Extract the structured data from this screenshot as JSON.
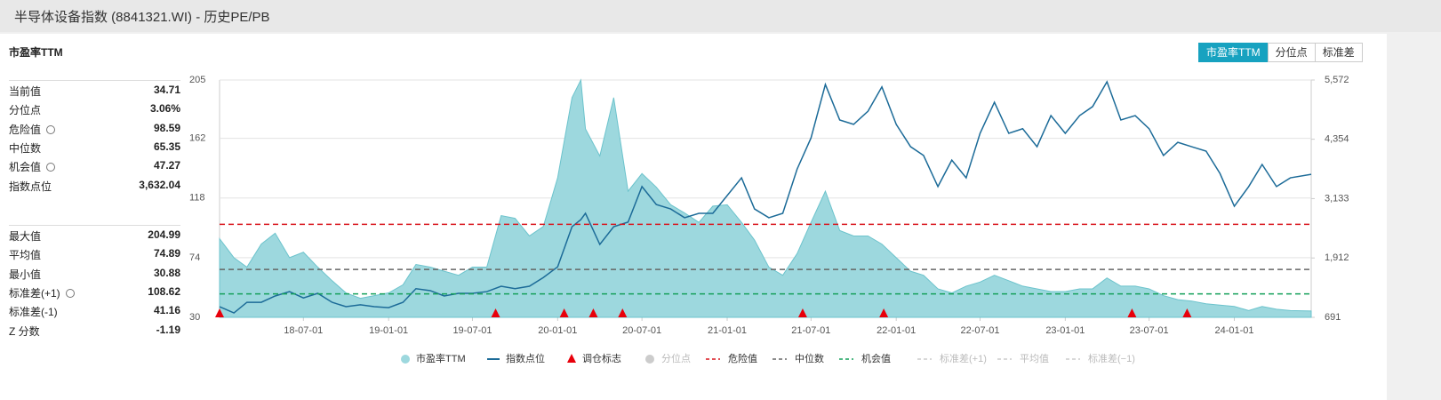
{
  "header": {
    "title": "半导体设备指数 (8841321.WI) - 历史PE/PB"
  },
  "panel": {
    "title": "市盈率TTM",
    "stats_top": [
      {
        "label": "当前值",
        "value": "34.71"
      },
      {
        "label": "分位点",
        "value": "3.06%"
      },
      {
        "label": "危险值",
        "value": "98.59"
      },
      {
        "label": "中位数",
        "value": "65.35"
      },
      {
        "label": "机会值",
        "value": "47.27"
      },
      {
        "label": "指数点位",
        "value": "3,632.04"
      }
    ],
    "stats_bottom": [
      {
        "label": "最大值",
        "value": "204.99"
      },
      {
        "label": "平均值",
        "value": "74.89"
      },
      {
        "label": "最小值",
        "value": "30.88"
      },
      {
        "label": "标准差(+1)",
        "value": "108.62"
      },
      {
        "label": "标准差(-1)",
        "value": "41.16"
      },
      {
        "label": "Z 分数",
        "value": "-1.19"
      }
    ]
  },
  "buttons": [
    "市盈率TTM",
    "分位点",
    "标准差"
  ],
  "chart_data": {
    "type": "combo",
    "x": [
      "18-01-01",
      "18-02-01",
      "18-03-01",
      "18-04-01",
      "18-05-01",
      "18-06-01",
      "18-07-01",
      "18-08-01",
      "18-09-01",
      "18-10-01",
      "18-11-01",
      "18-12-01",
      "19-01-01",
      "19-02-01",
      "19-03-01",
      "19-04-01",
      "19-05-01",
      "19-06-01",
      "19-07-01",
      "19-08-01",
      "19-09-01",
      "19-10-01",
      "19-11-01",
      "19-12-01",
      "20-01-01",
      "20-02-01",
      "20-02-20",
      "20-03-01",
      "20-04-01",
      "20-05-01",
      "20-06-01",
      "20-07-01",
      "20-08-01",
      "20-09-01",
      "20-10-01",
      "20-11-01",
      "20-12-01",
      "21-01-01",
      "21-02-01",
      "21-03-01",
      "21-04-01",
      "21-05-01",
      "21-06-01",
      "21-07-01",
      "21-08-01",
      "21-09-01",
      "21-10-01",
      "21-11-01",
      "21-12-01",
      "22-01-01",
      "22-02-01",
      "22-03-01",
      "22-04-01",
      "22-05-01",
      "22-06-01",
      "22-07-01",
      "22-08-01",
      "22-09-01",
      "22-10-01",
      "22-11-01",
      "22-12-01",
      "23-01-01",
      "23-02-01",
      "23-03-01",
      "23-04-01",
      "23-05-01",
      "23-06-01",
      "23-07-01",
      "23-08-01",
      "23-09-01",
      "23-10-01",
      "23-11-01",
      "23-12-01",
      "24-01-01",
      "24-02-01",
      "24-03-01",
      "24-04-01",
      "24-05-01",
      "24-06-15"
    ],
    "xlim": [
      "18-01-01",
      "24-06-15"
    ],
    "xticks": [
      "18-07-01",
      "19-01-01",
      "19-07-01",
      "20-01-01",
      "20-07-01",
      "21-01-01",
      "21-07-01",
      "22-01-01",
      "22-07-01",
      "23-01-01",
      "23-07-01",
      "24-01-01"
    ],
    "ylim": [
      30,
      205
    ],
    "yticks": [
      30,
      74,
      118,
      162,
      205
    ],
    "y2lim": [
      691,
      5572
    ],
    "y2ticks": [
      691,
      {
        "value": 1912,
        "label": "1,912"
      },
      {
        "value": 3133,
        "label": "3,133"
      },
      {
        "value": 4354,
        "label": "4,354"
      },
      {
        "value": 5572,
        "label": "5,572"
      }
    ],
    "grid": true,
    "series": [
      {
        "name": "市盈率TTM",
        "type": "area",
        "color": "#9dd8de",
        "values": [
          88,
          74,
          67,
          84,
          92,
          74,
          78,
          67,
          57,
          48,
          44,
          46,
          48,
          54,
          69,
          67,
          64,
          61,
          67,
          67,
          105,
          103,
          90,
          97,
          133,
          192,
          204.99,
          169,
          149,
          192,
          123,
          136,
          126,
          113,
          107,
          100,
          112,
          113,
          100,
          87,
          67,
          61,
          77,
          100,
          123,
          94,
          90,
          90,
          84,
          74,
          64,
          61,
          51,
          48,
          53,
          56,
          61,
          57,
          53,
          51,
          49,
          49,
          51,
          51,
          59,
          53,
          53,
          51,
          46,
          43,
          42,
          40,
          39,
          38,
          35,
          38,
          36,
          35,
          34.71
        ]
      },
      {
        "name": "指数点位",
        "type": "line",
        "axis": "y2",
        "color": "#1c6b98",
        "values": [
          910,
          782,
          1000,
          1000,
          1130,
          1220,
          1090,
          1185,
          1000,
          910,
          950,
          910,
          890,
          1000,
          1280,
          1240,
          1130,
          1185,
          1185,
          1220,
          1330,
          1280,
          1330,
          1510,
          1730,
          2555,
          2700,
          2830,
          2190,
          2555,
          2650,
          3380,
          3010,
          2920,
          2740,
          2830,
          2830,
          3195,
          3560,
          2920,
          2740,
          2830,
          3740,
          4380,
          5480,
          4750,
          4660,
          4930,
          5430,
          4660,
          4200,
          4020,
          3380,
          3925,
          3560,
          4475,
          5115,
          4475,
          4570,
          4200,
          4840,
          4475,
          4840,
          5025,
          5535,
          4750,
          4840,
          4570,
          4020,
          4290,
          4200,
          4110,
          3650,
          2975,
          3380,
          3835,
          3380,
          3560,
          3632.04
        ]
      }
    ],
    "markers": {
      "name": "调仓标志",
      "color": "#e8000b",
      "x": [
        "18-01-01",
        "19-08-20",
        "20-01-15",
        "20-03-18",
        "20-05-20",
        "21-06-13",
        "21-12-05",
        "23-05-25",
        "23-09-21"
      ]
    },
    "hlines": [
      {
        "name": "危险值",
        "value": 98.59,
        "color": "#d9141c"
      },
      {
        "name": "中位数",
        "value": 65.35,
        "color": "#666666"
      },
      {
        "name": "机会值",
        "value": 47.27,
        "color": "#14a05a"
      }
    ],
    "inactive": [
      {
        "name": "分位点",
        "color": "#cccccc"
      },
      {
        "name": "标准差(+1)",
        "color": "#cccccc"
      },
      {
        "name": "平均值",
        "color": "#cccccc"
      },
      {
        "name": "标准差(−1)",
        "color": "#cccccc"
      }
    ]
  }
}
